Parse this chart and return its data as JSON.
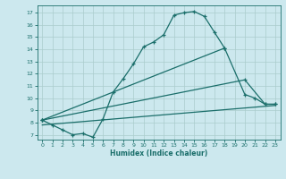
{
  "xlabel": "Humidex (Indice chaleur)",
  "bg_color": "#cce8ee",
  "grid_color": "#aacccc",
  "line_color": "#1a6e6a",
  "xlim": [
    -0.5,
    23.5
  ],
  "ylim": [
    6.6,
    17.6
  ],
  "xticks": [
    0,
    1,
    2,
    3,
    4,
    5,
    6,
    7,
    8,
    9,
    10,
    11,
    12,
    13,
    14,
    15,
    16,
    17,
    18,
    19,
    20,
    21,
    22,
    23
  ],
  "yticks": [
    7,
    8,
    9,
    10,
    11,
    12,
    13,
    14,
    15,
    16,
    17
  ],
  "line1_x": [
    0,
    1,
    2,
    3,
    4,
    5,
    6,
    7,
    8,
    9,
    10,
    11,
    12,
    13,
    14,
    15,
    16,
    17,
    18
  ],
  "line1_y": [
    8.2,
    7.8,
    7.4,
    7.0,
    7.1,
    6.8,
    8.3,
    10.5,
    11.6,
    12.8,
    14.2,
    14.6,
    15.2,
    16.8,
    17.0,
    17.1,
    16.7,
    15.4,
    14.1
  ],
  "line2_x": [
    0,
    18,
    20,
    21,
    22,
    23
  ],
  "line2_y": [
    8.2,
    14.1,
    10.3,
    10.0,
    9.5,
    9.5
  ],
  "line3_x": [
    0,
    20,
    22,
    23
  ],
  "line3_y": [
    8.2,
    11.5,
    9.5,
    9.5
  ],
  "line4_x": [
    0,
    23
  ],
  "line4_y": [
    7.8,
    9.4
  ]
}
